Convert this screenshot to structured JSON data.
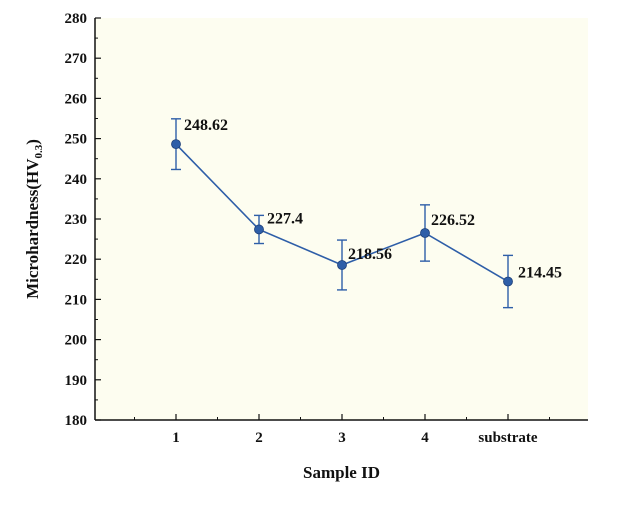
{
  "chart_data": {
    "type": "line",
    "title": "",
    "xlabel": "Sample ID",
    "ylabel": {
      "main": "Microhardness(HV",
      "subscript": "0.3",
      "suffix": ")"
    },
    "categories": [
      "1",
      "2",
      "3",
      "4",
      "substrate"
    ],
    "series": [
      {
        "values": [
          248.62,
          227.4,
          218.56,
          226.52,
          214.45
        ],
        "error": [
          6.3,
          3.5,
          6.2,
          7.0,
          6.5
        ],
        "labels": [
          "248.62",
          "227.4",
          "218.56",
          "226.52",
          "214.45"
        ],
        "color": "#2e5ea8"
      }
    ],
    "ylim": [
      180,
      280
    ],
    "yticks": [
      180,
      190,
      200,
      210,
      220,
      230,
      240,
      250,
      260,
      270,
      280
    ],
    "grid": false,
    "legend": "none",
    "plot_background": "#fdfdf0"
  }
}
